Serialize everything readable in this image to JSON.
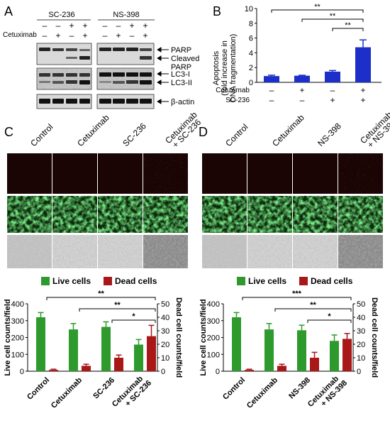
{
  "panels": {
    "A": {
      "letter": "A",
      "drug1": "SC-236",
      "drug2": "NS-398",
      "row_label": "Cetuximab",
      "top_signs": [
        "–",
        "–",
        "+",
        "+",
        "–",
        "–",
        "+",
        "+"
      ],
      "cetux_signs": [
        "–",
        "+",
        "–",
        "+",
        "–",
        "+",
        "–",
        "+"
      ],
      "blot_labels": {
        "parp": "PARP",
        "cleaved1": "Cleaved",
        "cleaved2": "PARP",
        "lc3i": "LC3-I",
        "lc3ii": "LC3-II",
        "actin": "β-actin"
      }
    },
    "B": {
      "letter": "B",
      "ylabel1": "Apoptosis",
      "ylabel2": "(fold increase in",
      "ylabel3": "DNA fragmentation)",
      "row1_label": "Cetuximab",
      "row2_label": "SC-236",
      "row1_signs": [
        "–",
        "+",
        "–",
        "+"
      ],
      "row2_signs": [
        "–",
        "–",
        "+",
        "+"
      ],
      "sig": [
        "**",
        "**",
        "**"
      ]
    },
    "C": {
      "letter": "C",
      "col_labels": [
        "Control",
        "Cetuximab",
        "SC-236",
        "Cetuximab",
        "+ SC-236"
      ],
      "legend_live": "Live cells",
      "legend_dead": "Dead cells",
      "ylabel_left": "Live cell counts/field",
      "ylabel_right": "Dead cell counts/field",
      "categories": [
        "Control",
        "Cetuximab",
        "SC-236",
        "Cetuximab",
        "+ SC-236"
      ],
      "sig": [
        "**",
        "**",
        "*"
      ]
    },
    "D": {
      "letter": "D",
      "col_labels": [
        "Control",
        "Cetuximab",
        "NS-398",
        "Cetuximab",
        "+ NS-398"
      ],
      "legend_live": "Live cells",
      "legend_dead": "Dead cells",
      "ylabel_left": "Live cell counts/field",
      "ylabel_right": "Dead cell counts/field",
      "categories": [
        "Control",
        "Cetuximab",
        "NS-398",
        "Cetuximab",
        "+ NS-398"
      ],
      "sig": [
        "***",
        "**",
        "*"
      ]
    }
  },
  "colors": {
    "blue": "#1c2fc8",
    "green": "#2e9a2e",
    "red": "#a81818",
    "fluor_red_bg": "#1a0404",
    "fluor_green": "#2f8a2f"
  },
  "chart_data": [
    {
      "type": "bar",
      "panel": "B",
      "categories": [
        "1",
        "2",
        "3",
        "4"
      ],
      "values": [
        0.85,
        0.9,
        1.45,
        4.75
      ],
      "errors": [
        0.12,
        0.06,
        0.15,
        1.0
      ],
      "ylim": [
        0,
        10
      ],
      "yticks": [
        "0",
        "2",
        "4",
        "6",
        "8",
        "10"
      ]
    },
    {
      "type": "bar",
      "panel": "C",
      "categories": [
        "Control",
        "Cetuximab",
        "SC-236",
        "Cetuximab + SC-236"
      ],
      "series": [
        {
          "name": "Live cells",
          "axis": "left",
          "values": [
            320,
            248,
            263,
            158
          ],
          "errors": [
            28,
            35,
            30,
            30
          ]
        },
        {
          "name": "Dead cells",
          "axis": "right",
          "values": [
            1,
            4,
            10,
            26
          ],
          "errors": [
            0.5,
            1.2,
            2,
            8
          ]
        }
      ],
      "ylim_left": [
        0,
        400
      ],
      "ylim_right": [
        0,
        50
      ],
      "yticks_left": [
        "0",
        "100",
        "200",
        "300",
        "400"
      ],
      "yticks_right": [
        "0",
        "10",
        "20",
        "30",
        "40",
        "50"
      ]
    },
    {
      "type": "bar",
      "panel": "D",
      "categories": [
        "Control",
        "Cetuximab",
        "NS-398",
        "Cetuximab + NS-398"
      ],
      "series": [
        {
          "name": "Live cells",
          "axis": "left",
          "values": [
            320,
            248,
            243,
            180
          ],
          "errors": [
            28,
            35,
            30,
            35
          ]
        },
        {
          "name": "Dead cells",
          "axis": "right",
          "values": [
            1,
            4,
            10,
            24
          ],
          "errors": [
            0.5,
            1.2,
            4,
            4
          ]
        }
      ],
      "ylim_left": [
        0,
        400
      ],
      "ylim_right": [
        0,
        50
      ],
      "yticks_left": [
        "0",
        "100",
        "200",
        "300",
        "400"
      ],
      "yticks_right": [
        "0",
        "10",
        "20",
        "30",
        "40",
        "50"
      ]
    }
  ]
}
